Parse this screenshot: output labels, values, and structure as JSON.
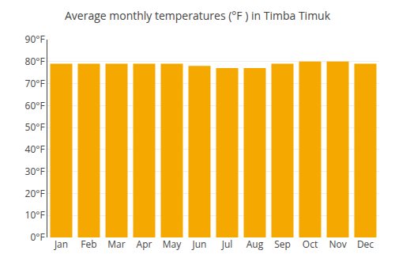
{
  "chart_data": {
    "type": "bar",
    "title": "Average monthly temperatures (°F ) in Timba Timuk",
    "categories": [
      "Jan",
      "Feb",
      "Mar",
      "Apr",
      "May",
      "Jun",
      "Jul",
      "Aug",
      "Sep",
      "Oct",
      "Nov",
      "Dec"
    ],
    "values": [
      79,
      79,
      79,
      79,
      79,
      78,
      77,
      77,
      79,
      80,
      80,
      79
    ],
    "color": "#F5A800",
    "ylim": [
      0,
      90
    ],
    "yticks": [
      {
        "value": 0,
        "label": "0°F"
      },
      {
        "value": 10,
        "label": "10°F"
      },
      {
        "value": 20,
        "label": "20°F"
      },
      {
        "value": 30,
        "label": "30°F"
      },
      {
        "value": 40,
        "label": "40°F"
      },
      {
        "value": 50,
        "label": "50°F"
      },
      {
        "value": 60,
        "label": "60°F"
      },
      {
        "value": 70,
        "label": "70°F"
      },
      {
        "value": 80,
        "label": "80°F"
      },
      {
        "value": 90,
        "label": "90°F"
      }
    ],
    "grid": true
  }
}
